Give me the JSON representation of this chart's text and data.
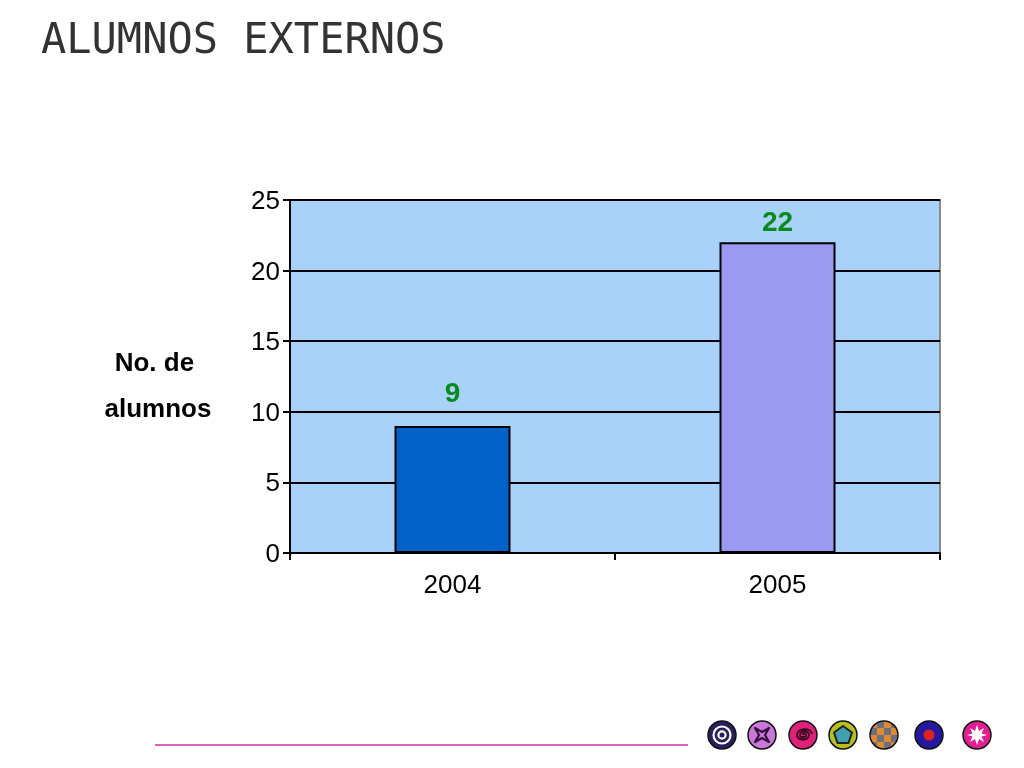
{
  "chart_data": {
    "type": "bar",
    "title": "ALUMNOS EXTERNOS",
    "ylabel": "No. de alumnos",
    "categories": [
      "2004",
      "2005"
    ],
    "values": [
      9,
      22
    ],
    "colors": [
      "#0062c8",
      "#9a9af2"
    ],
    "ylim": [
      0,
      25
    ],
    "yticks": [
      0,
      5,
      10,
      15,
      20,
      25
    ],
    "grid": "y",
    "data_labels": true
  }
}
